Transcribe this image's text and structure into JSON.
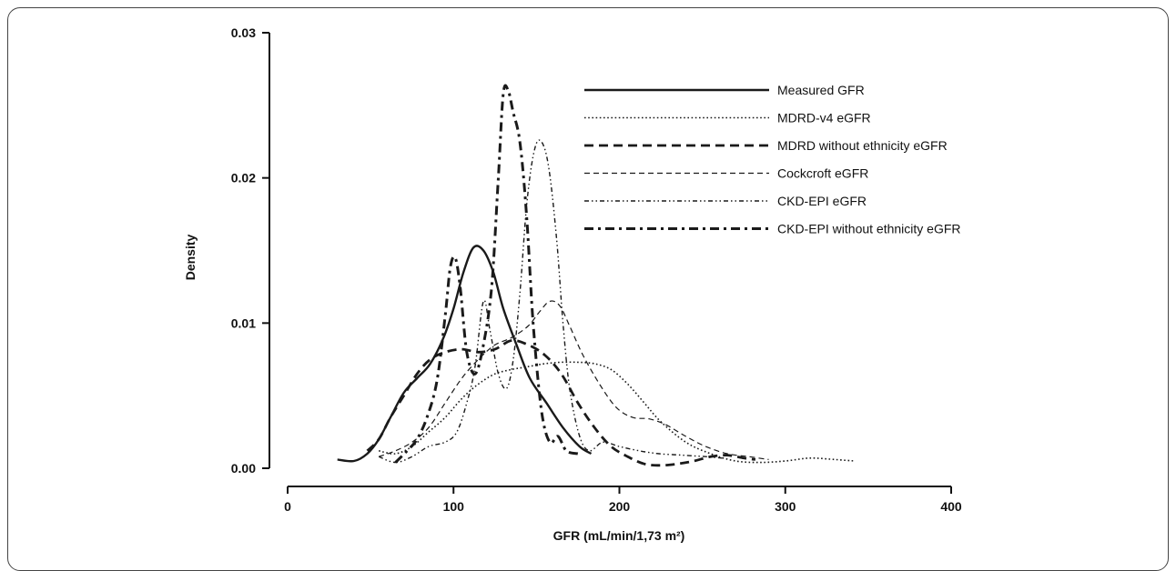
{
  "chart_data": {
    "type": "line",
    "title": "",
    "xlabel": "GFR (mL/min/1,73 m²)",
    "ylabel": "Density",
    "xlim": [
      0,
      400
    ],
    "ylim": [
      0,
      0.03
    ],
    "x_ticks": [
      "0",
      "100",
      "200",
      "300",
      "400"
    ],
    "y_ticks": [
      "0.00",
      "0.01",
      "0.02",
      "0.03"
    ],
    "grid": false,
    "legend_placement": "top-right",
    "series": [
      {
        "name": "Measured GFR",
        "style": "solid",
        "points": [
          [
            30,
            0.0006
          ],
          [
            40,
            0.0005
          ],
          [
            48,
            0.001
          ],
          [
            55,
            0.002
          ],
          [
            62,
            0.0035
          ],
          [
            70,
            0.0052
          ],
          [
            78,
            0.0062
          ],
          [
            86,
            0.0072
          ],
          [
            94,
            0.009
          ],
          [
            100,
            0.011
          ],
          [
            106,
            0.0135
          ],
          [
            112,
            0.0152
          ],
          [
            118,
            0.015
          ],
          [
            124,
            0.0135
          ],
          [
            130,
            0.011
          ],
          [
            138,
            0.0085
          ],
          [
            146,
            0.0062
          ],
          [
            156,
            0.0045
          ],
          [
            166,
            0.0028
          ],
          [
            176,
            0.0015
          ],
          [
            183,
            0.001
          ]
        ]
      },
      {
        "name": "MDRD-v4 eGFR",
        "style": "dotted",
        "points": [
          [
            55,
            0.0012
          ],
          [
            65,
            0.001
          ],
          [
            75,
            0.0015
          ],
          [
            85,
            0.0025
          ],
          [
            95,
            0.0035
          ],
          [
            105,
            0.0048
          ],
          [
            115,
            0.0058
          ],
          [
            125,
            0.0065
          ],
          [
            135,
            0.0068
          ],
          [
            145,
            0.007
          ],
          [
            155,
            0.0072
          ],
          [
            165,
            0.0073
          ],
          [
            175,
            0.0073
          ],
          [
            185,
            0.0072
          ],
          [
            195,
            0.0068
          ],
          [
            205,
            0.0058
          ],
          [
            215,
            0.0045
          ],
          [
            225,
            0.0032
          ],
          [
            240,
            0.0018
          ],
          [
            255,
            0.001
          ],
          [
            270,
            0.0005
          ],
          [
            285,
            0.0004
          ],
          [
            300,
            0.0005
          ],
          [
            315,
            0.0007
          ],
          [
            330,
            0.0006
          ],
          [
            342,
            0.0005
          ]
        ]
      },
      {
        "name": "MDRD without ethnicity eGFR",
        "style": "heavy-dash",
        "points": [
          [
            48,
            0.0012
          ],
          [
            55,
            0.002
          ],
          [
            62,
            0.0035
          ],
          [
            70,
            0.005
          ],
          [
            78,
            0.0065
          ],
          [
            86,
            0.0075
          ],
          [
            95,
            0.008
          ],
          [
            105,
            0.0082
          ],
          [
            115,
            0.008
          ],
          [
            125,
            0.0082
          ],
          [
            135,
            0.0088
          ],
          [
            145,
            0.0085
          ],
          [
            155,
            0.0078
          ],
          [
            165,
            0.0065
          ],
          [
            175,
            0.0045
          ],
          [
            185,
            0.0028
          ],
          [
            195,
            0.0015
          ],
          [
            205,
            0.0008
          ],
          [
            215,
            0.0003
          ],
          [
            225,
            0.0002
          ],
          [
            235,
            0.0003
          ],
          [
            245,
            0.0005
          ],
          [
            255,
            0.0008
          ],
          [
            265,
            0.0009
          ],
          [
            275,
            0.0007
          ],
          [
            282,
            0.0006
          ]
        ]
      },
      {
        "name": "Cockcroft eGFR",
        "style": "dashed",
        "points": [
          [
            55,
            0.0008
          ],
          [
            65,
            0.0012
          ],
          [
            75,
            0.0018
          ],
          [
            85,
            0.0028
          ],
          [
            95,
            0.0045
          ],
          [
            105,
            0.0062
          ],
          [
            115,
            0.0075
          ],
          [
            125,
            0.0085
          ],
          [
            135,
            0.009
          ],
          [
            145,
            0.0098
          ],
          [
            152,
            0.0108
          ],
          [
            158,
            0.0115
          ],
          [
            164,
            0.0112
          ],
          [
            170,
            0.0098
          ],
          [
            178,
            0.0078
          ],
          [
            188,
            0.0058
          ],
          [
            198,
            0.0042
          ],
          [
            208,
            0.0035
          ],
          [
            218,
            0.0034
          ],
          [
            228,
            0.003
          ],
          [
            240,
            0.0022
          ],
          [
            252,
            0.0015
          ],
          [
            265,
            0.001
          ],
          [
            278,
            0.0008
          ],
          [
            290,
            0.0006
          ]
        ]
      },
      {
        "name": "CKD-EPI eGFR",
        "style": "dash-dot-dot",
        "points": [
          [
            55,
            0.0008
          ],
          [
            65,
            0.0004
          ],
          [
            75,
            0.0008
          ],
          [
            85,
            0.0015
          ],
          [
            95,
            0.0018
          ],
          [
            102,
            0.0025
          ],
          [
            108,
            0.0045
          ],
          [
            113,
            0.007
          ],
          [
            118,
            0.0115
          ],
          [
            122,
            0.0095
          ],
          [
            127,
            0.0065
          ],
          [
            132,
            0.0055
          ],
          [
            136,
            0.0075
          ],
          [
            140,
            0.012
          ],
          [
            144,
            0.018
          ],
          [
            148,
            0.0215
          ],
          [
            152,
            0.0226
          ],
          [
            157,
            0.021
          ],
          [
            162,
            0.016
          ],
          [
            166,
            0.01
          ],
          [
            170,
            0.0055
          ],
          [
            176,
            0.0022
          ],
          [
            182,
            0.0012
          ],
          [
            190,
            0.0018
          ],
          [
            200,
            0.0015
          ],
          [
            212,
            0.0012
          ],
          [
            224,
            0.001
          ],
          [
            238,
            0.0009
          ],
          [
            252,
            0.0008
          ],
          [
            262,
            0.0007
          ]
        ]
      },
      {
        "name": "CKD-EPI without ethnicity eGFR",
        "style": "heavy-dash-dot",
        "points": [
          [
            65,
            0.0004
          ],
          [
            72,
            0.0012
          ],
          [
            78,
            0.002
          ],
          [
            84,
            0.0035
          ],
          [
            90,
            0.006
          ],
          [
            95,
            0.0105
          ],
          [
            98,
            0.0138
          ],
          [
            101,
            0.0145
          ],
          [
            104,
            0.0125
          ],
          [
            108,
            0.008
          ],
          [
            113,
            0.0065
          ],
          [
            118,
            0.0085
          ],
          [
            123,
            0.0125
          ],
          [
            127,
            0.02
          ],
          [
            130,
            0.0258
          ],
          [
            133,
            0.026
          ],
          [
            136,
            0.0245
          ],
          [
            140,
            0.0225
          ],
          [
            144,
            0.0175
          ],
          [
            148,
            0.01
          ],
          [
            153,
            0.004
          ],
          [
            158,
            0.0018
          ],
          [
            163,
            0.0022
          ],
          [
            168,
            0.0012
          ],
          [
            175,
            0.001
          ]
        ]
      }
    ]
  }
}
